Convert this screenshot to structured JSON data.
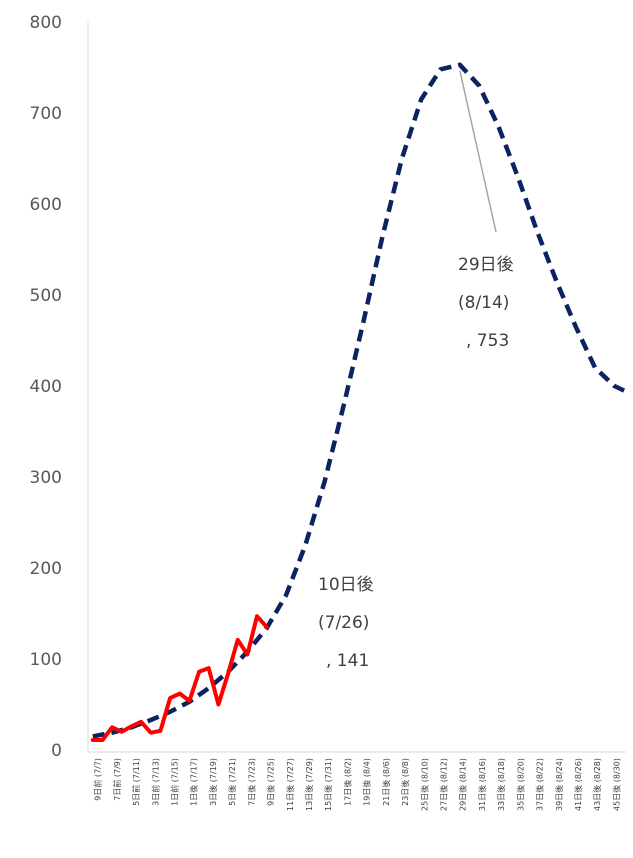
{
  "chart_data": {
    "type": "line",
    "title": "",
    "xlabel": "",
    "ylabel": "",
    "ylim": [
      0,
      800
    ],
    "yticks": [
      0,
      100,
      200,
      300,
      400,
      500,
      600,
      700,
      800
    ],
    "grid": false,
    "legend": "none",
    "x_labels": [
      "9日前 (7/7)",
      "7日前 (7/9)",
      "5日前 (7/11)",
      "3日前 (7/13)",
      "1日前 (7/15)",
      "1日後 (7/17)",
      "3日後 (7/19)",
      "5日後 (7/21)",
      "7日後 (7/23)",
      "9日後 (7/25)",
      "11日後 (7/27)",
      "13日後 (7/29)",
      "15日後 (7/31)",
      "17日後 (8/2)",
      "19日後 (8/4)",
      "21日後 (8/6)",
      "23日後 (8/8)",
      "25日後 (8/10)",
      "27日後 (8/12)",
      "29日後 (8/14)",
      "31日後 (8/16)",
      "33日後 (8/18)",
      "35日後 (8/20)",
      "37日後 (8/22)",
      "39日後 (8/24)",
      "41日後 (8/26)",
      "43日後 (8/28)",
      "45日後 (8/30)"
    ],
    "series": [
      {
        "key": "forecast",
        "style": "dashed",
        "color": "#0b2360",
        "x": [
          -9,
          -7,
          -5,
          -3,
          -1,
          1,
          3,
          5,
          7,
          9,
          11,
          13,
          15,
          17,
          19,
          21,
          23,
          25,
          27,
          29,
          31,
          33,
          35,
          37,
          39,
          41,
          43,
          45,
          46
        ],
        "values": [
          15,
          19,
          25,
          33,
          42,
          53,
          68,
          86,
          108,
          134,
          170,
          225,
          295,
          380,
          470,
          565,
          650,
          715,
          748,
          753,
          730,
          685,
          630,
          570,
          515,
          465,
          420,
          400,
          395
        ]
      },
      {
        "key": "actual",
        "style": "solid",
        "color": "#ff0000",
        "x": [
          -9,
          -8,
          -7,
          -6,
          -5,
          -4,
          -3,
          -2,
          -1,
          0,
          1,
          2,
          3,
          4,
          5,
          6,
          7,
          8,
          9
        ],
        "values": [
          11,
          11,
          25,
          20,
          26,
          31,
          19,
          21,
          57,
          62,
          54,
          86,
          90,
          50,
          84,
          121,
          105,
          147,
          135
        ]
      }
    ],
    "annotations": [
      {
        "lines": [
          "10日後",
          "(7/26)",
          ", 141"
        ],
        "x": 10,
        "y": 141
      },
      {
        "lines": [
          "29日後",
          "(8/14)",
          ", 753"
        ],
        "x": 29,
        "y": 753
      }
    ]
  }
}
